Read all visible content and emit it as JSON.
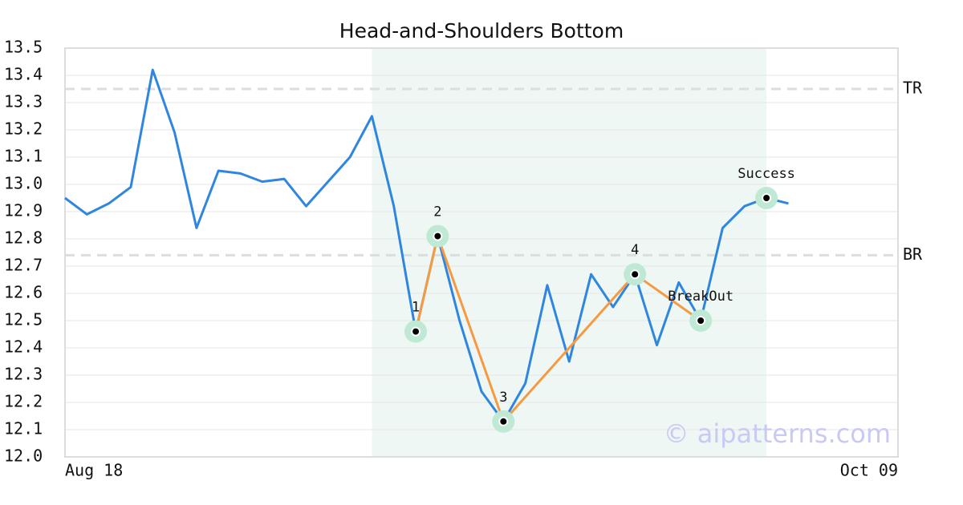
{
  "chart_data": {
    "type": "line",
    "title": "Head-and-Shoulders Bottom",
    "categories": [
      "Aug 18",
      null,
      null,
      null,
      null,
      null,
      null,
      null,
      null,
      null,
      null,
      null,
      null,
      null,
      null,
      null,
      null,
      null,
      null,
      null,
      null,
      null,
      null,
      null,
      null,
      null,
      null,
      null,
      null,
      null,
      null,
      null,
      null,
      null,
      null,
      null,
      null,
      null,
      "Oct 09"
    ],
    "values": [
      12.95,
      12.89,
      12.93,
      12.99,
      13.42,
      13.19,
      12.84,
      13.05,
      13.04,
      13.01,
      13.02,
      12.92,
      13.01,
      13.1,
      13.25,
      12.92,
      12.46,
      12.81,
      12.5,
      12.24,
      12.13,
      12.27,
      12.63,
      12.35,
      12.67,
      12.55,
      12.67,
      12.41,
      12.64,
      12.5,
      12.84,
      12.92,
      12.95,
      12.93,
      null,
      null,
      null,
      null,
      null
    ],
    "color": "#2f86e0",
    "ylim": [
      12.0,
      13.5
    ],
    "yticks": [
      {
        "value": 12.0,
        "label": "12.0"
      },
      12.1,
      12.2,
      12.3,
      12.4,
      12.5,
      12.6,
      12.7,
      12.8,
      12.9,
      {
        "value": 13.0,
        "label": "13.0"
      },
      13.1,
      13.2,
      13.3,
      13.4,
      13.5
    ],
    "grid": true,
    "pattern_range": [
      14,
      32
    ],
    "pattern_line_color": "#f59a42",
    "points": [
      {
        "x": 16,
        "y": 12.46,
        "label": "1",
        "connected": true
      },
      {
        "x": 17,
        "y": 12.81,
        "label": "2",
        "connected": true
      },
      {
        "x": 20,
        "y": 12.13,
        "label": "3",
        "connected": true
      },
      {
        "x": 26,
        "y": 12.67,
        "label": "4",
        "connected": true
      },
      {
        "x": 29,
        "y": 12.5,
        "label": "BreakOut",
        "connected": true
      },
      {
        "x": 32,
        "y": 12.95,
        "label": "Success",
        "connected": false
      }
    ],
    "levels": [
      {
        "label": "TR",
        "value": 13.35
      },
      {
        "label": "BR",
        "value": 12.74
      }
    ],
    "watermark": "© aipatterns.com"
  }
}
